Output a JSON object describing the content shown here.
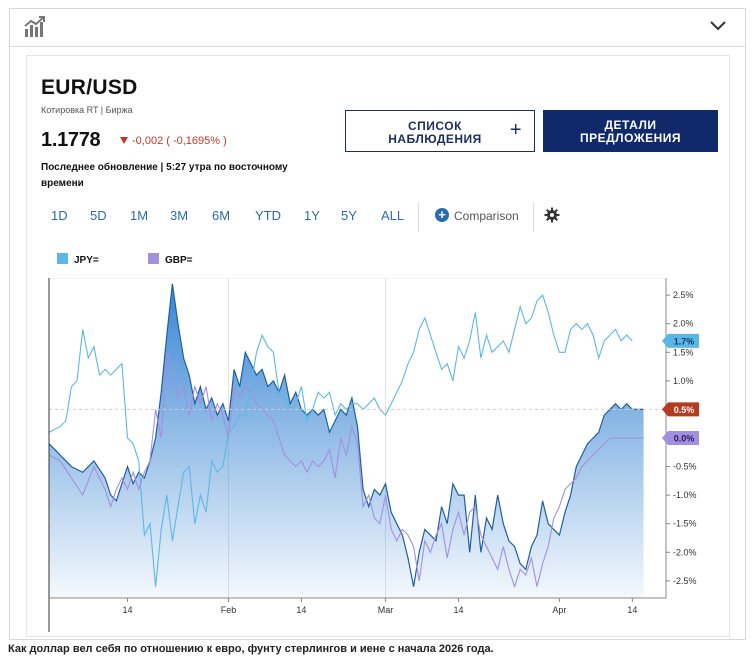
{
  "symbol": "EUR/USD",
  "quote_source": "Котировка RT | Биржа",
  "price": "1.1778",
  "change": "-0,002 ( -0,1695% )",
  "updated": "Последнее обновление | 5:27 утра по восточному времени",
  "buttons": {
    "watchlist": "СПИСОК НАБЛЮДЕНИЯ",
    "watchlist_plus": "+",
    "details": "ДЕТАЛИ ПРЕДЛОЖЕНИЯ"
  },
  "ranges": [
    "1D",
    "5D",
    "1M",
    "3M",
    "6M",
    "YTD",
    "1Y",
    "5Y",
    "ALL"
  ],
  "comparison_label": "Comparison",
  "icons": {
    "top_left": "chart-icon",
    "top_right": "chevron-down-icon",
    "settings": "gear-icon",
    "comparison": "plus-circle-icon"
  },
  "colors": {
    "eur": "#2e7fd1",
    "jpy": "#5bb8e6",
    "gbp": "#a28fe0",
    "price_badge": "#c0392b",
    "nav": "#10296a"
  },
  "caption": "Как доллар вел себя по отношению к евро, фунту стерлингов и иене с начала 2026 года.",
  "chart_data": {
    "type": "line",
    "y_ticks": [
      "2.5%",
      "2.0%",
      "1.5%",
      "1.0%",
      "0.5%",
      "0.0%",
      "-0.5%",
      "-1.0%",
      "-1.5%",
      "-2.0%",
      "-2.5%"
    ],
    "ylim": [
      -2.8,
      2.8
    ],
    "x_ticks": [
      {
        "label": "14",
        "x": 14
      },
      {
        "label": "Feb",
        "x": 32
      },
      {
        "label": "14",
        "x": 45
      },
      {
        "label": "Mar",
        "x": 60
      },
      {
        "label": "14",
        "x": 73
      },
      {
        "label": "Apr",
        "x": 91
      },
      {
        "label": "14",
        "x": 104
      }
    ],
    "xlim": [
      0,
      110
    ],
    "legend": [
      {
        "name": "JPY=",
        "color": "#5bb8e6"
      },
      {
        "name": "GBP=",
        "color": "#a28fe0"
      }
    ],
    "end_labels": [
      {
        "text": "1.7%",
        "value": 1.7,
        "color": "#5bb8e6",
        "text_color": "#0c3d66"
      },
      {
        "text": "0.5%",
        "value": 0.5,
        "color": "#b53a1f",
        "text_color": "#ffffff"
      },
      {
        "text": "0.0%",
        "value": 0.0,
        "color": "#a28fe0",
        "text_color": "#2a1a60"
      }
    ],
    "series": [
      {
        "name": "EUR",
        "x": [
          0,
          2,
          4,
          6,
          8,
          10,
          11,
          12,
          13,
          14,
          15,
          16,
          17,
          18,
          19,
          20,
          21,
          22,
          23,
          24,
          25,
          26,
          27,
          28,
          29,
          30,
          31,
          32,
          33,
          34,
          35,
          36,
          37,
          38,
          39,
          40,
          41,
          42,
          43,
          44,
          45,
          46,
          47,
          48,
          49,
          50,
          51,
          52,
          53,
          54,
          55,
          56,
          57,
          58,
          59,
          60,
          61,
          62,
          63,
          64,
          65,
          66,
          67,
          68,
          69,
          70,
          71,
          72,
          73,
          74,
          75,
          76,
          77,
          78,
          79,
          80,
          81,
          82,
          83,
          84,
          85,
          86,
          87,
          88,
          89,
          90,
          91,
          92,
          93,
          94,
          95,
          96,
          97,
          98,
          99,
          100,
          101,
          102,
          103,
          104,
          105,
          106
        ],
        "y": [
          -0.1,
          -0.3,
          -0.5,
          -0.6,
          -0.4,
          -0.7,
          -1.0,
          -1.1,
          -0.8,
          -0.5,
          -0.8,
          -0.6,
          -0.7,
          -0.4,
          0.0,
          0.8,
          1.8,
          2.7,
          2.0,
          1.4,
          1.1,
          0.6,
          0.9,
          0.5,
          0.7,
          0.4,
          0.6,
          0.3,
          1.2,
          0.9,
          1.5,
          1.3,
          1.1,
          1.2,
          0.9,
          1.0,
          0.8,
          1.1,
          0.6,
          0.8,
          0.5,
          0.4,
          0.5,
          0.4,
          0.5,
          0.1,
          0.3,
          0.5,
          0.4,
          0.7,
          0.2,
          -0.9,
          -1.2,
          -0.9,
          -1.0,
          -0.8,
          -1.3,
          -1.5,
          -1.7,
          -2.1,
          -2.6,
          -2.0,
          -1.6,
          -1.7,
          -1.8,
          -1.2,
          -1.5,
          -0.8,
          -1.0,
          -1.0,
          -2.0,
          -1.0,
          -2.0,
          -1.4,
          -1.6,
          -1.0,
          -1.5,
          -1.8,
          -1.9,
          -2.2,
          -2.3,
          -1.9,
          -1.7,
          -1.1,
          -1.5,
          -1.6,
          -1.7,
          -1.3,
          -1.0,
          -0.5,
          -0.3,
          -0.1,
          0.0,
          0.1,
          0.4,
          0.5,
          0.6,
          0.5,
          0.6,
          0.5,
          0.5,
          0.5
        ]
      },
      {
        "name": "JPY=",
        "x": [
          0,
          2,
          3,
          4,
          5,
          6,
          7,
          8,
          9,
          10,
          11,
          12,
          13,
          14,
          15,
          16,
          17,
          18,
          19,
          20,
          21,
          22,
          23,
          24,
          25,
          26,
          27,
          28,
          29,
          30,
          31,
          32,
          33,
          34,
          35,
          36,
          37,
          38,
          39,
          40,
          41,
          42,
          43,
          44,
          45,
          46,
          47,
          48,
          49,
          50,
          51,
          52,
          53,
          54,
          55,
          56,
          57,
          58,
          59,
          60,
          61,
          62,
          63,
          64,
          65,
          66,
          67,
          68,
          69,
          70,
          71,
          72,
          73,
          74,
          75,
          76,
          77,
          78,
          79,
          80,
          81,
          82,
          83,
          84,
          85,
          86,
          87,
          88,
          89,
          90,
          91,
          92,
          93,
          94,
          95,
          96,
          97,
          98,
          99,
          100,
          101,
          102,
          103,
          104
        ],
        "y": [
          0.1,
          0.2,
          0.3,
          0.9,
          1.0,
          1.9,
          1.4,
          1.6,
          1.1,
          1.2,
          1.1,
          1.2,
          1.3,
          0.0,
          -0.1,
          -0.4,
          -1.7,
          -1.5,
          -2.6,
          -1.6,
          -1.0,
          -1.8,
          -1.2,
          -0.6,
          -0.5,
          -1.5,
          -1.0,
          -1.3,
          -0.4,
          -0.6,
          -0.5,
          0.1,
          0.2,
          0.4,
          0.4,
          0.9,
          1.5,
          1.8,
          1.6,
          1.5,
          0.8,
          0.7,
          0.5,
          0.6,
          0.9,
          0.3,
          0.5,
          0.8,
          0.7,
          0.8,
          0.4,
          0.6,
          0.5,
          0.6,
          0.6,
          0.5,
          0.6,
          0.7,
          0.5,
          0.4,
          0.6,
          0.8,
          1.0,
          1.3,
          1.5,
          1.9,
          2.1,
          1.8,
          1.5,
          1.2,
          1.3,
          1.0,
          1.6,
          1.4,
          1.7,
          2.2,
          1.4,
          1.8,
          1.5,
          1.6,
          1.7,
          1.5,
          1.9,
          2.3,
          2.0,
          2.1,
          2.4,
          2.5,
          2.2,
          1.8,
          1.5,
          1.5,
          1.9,
          2.0,
          1.9,
          2.0,
          1.8,
          1.4,
          1.7,
          1.8,
          1.9,
          1.7,
          1.8,
          1.7
        ]
      },
      {
        "name": "GBP=",
        "x": [
          0,
          2,
          4,
          6,
          8,
          10,
          11,
          12,
          13,
          14,
          15,
          16,
          17,
          18,
          19,
          20,
          21,
          22,
          23,
          24,
          25,
          26,
          27,
          28,
          29,
          30,
          31,
          32,
          33,
          34,
          35,
          36,
          37,
          38,
          39,
          40,
          41,
          42,
          43,
          44,
          45,
          46,
          47,
          48,
          49,
          50,
          51,
          52,
          53,
          54,
          55,
          56,
          57,
          58,
          59,
          60,
          61,
          62,
          63,
          64,
          65,
          66,
          67,
          68,
          69,
          70,
          71,
          72,
          73,
          74,
          75,
          76,
          77,
          78,
          79,
          80,
          81,
          82,
          83,
          84,
          85,
          86,
          87,
          88,
          89,
          90,
          91,
          92,
          93,
          94,
          95,
          96,
          97,
          98,
          99,
          100,
          101,
          102,
          103,
          104,
          105,
          106
        ],
        "y": [
          -0.3,
          -0.4,
          -0.7,
          -1.0,
          -0.5,
          -0.9,
          -1.2,
          -0.9,
          -0.7,
          -0.9,
          -0.6,
          -0.9,
          -0.6,
          -0.4,
          0.5,
          0.0,
          1.5,
          1.2,
          0.7,
          0.9,
          0.4,
          0.9,
          0.6,
          0.9,
          0.3,
          0.6,
          0.4,
          0.0,
          0.9,
          0.7,
          0.9,
          0.8,
          0.6,
          0.5,
          0.4,
          0.3,
          0.0,
          -0.3,
          -0.4,
          -0.5,
          -0.4,
          -0.6,
          -0.4,
          -0.5,
          -0.4,
          -0.2,
          -0.7,
          0.0,
          -0.3,
          0.2,
          -0.1,
          -1.2,
          -1.0,
          -1.4,
          -1.5,
          -1.0,
          -1.6,
          -1.8,
          -1.6,
          -1.7,
          -1.9,
          -2.5,
          -1.8,
          -2.0,
          -1.7,
          -1.5,
          -2.1,
          -1.6,
          -1.3,
          -1.7,
          -1.3,
          -1.2,
          -1.7,
          -1.9,
          -2.1,
          -2.3,
          -1.9,
          -2.3,
          -2.6,
          -2.3,
          -2.4,
          -2.1,
          -2.6,
          -2.2,
          -1.9,
          -1.4,
          -1.2,
          -0.9,
          -0.8,
          -0.7,
          -0.5,
          -0.4,
          -0.3,
          -0.2,
          -0.1,
          0.0,
          0.0,
          0.0,
          0.0,
          0.0,
          0.0,
          0.0
        ]
      }
    ]
  }
}
